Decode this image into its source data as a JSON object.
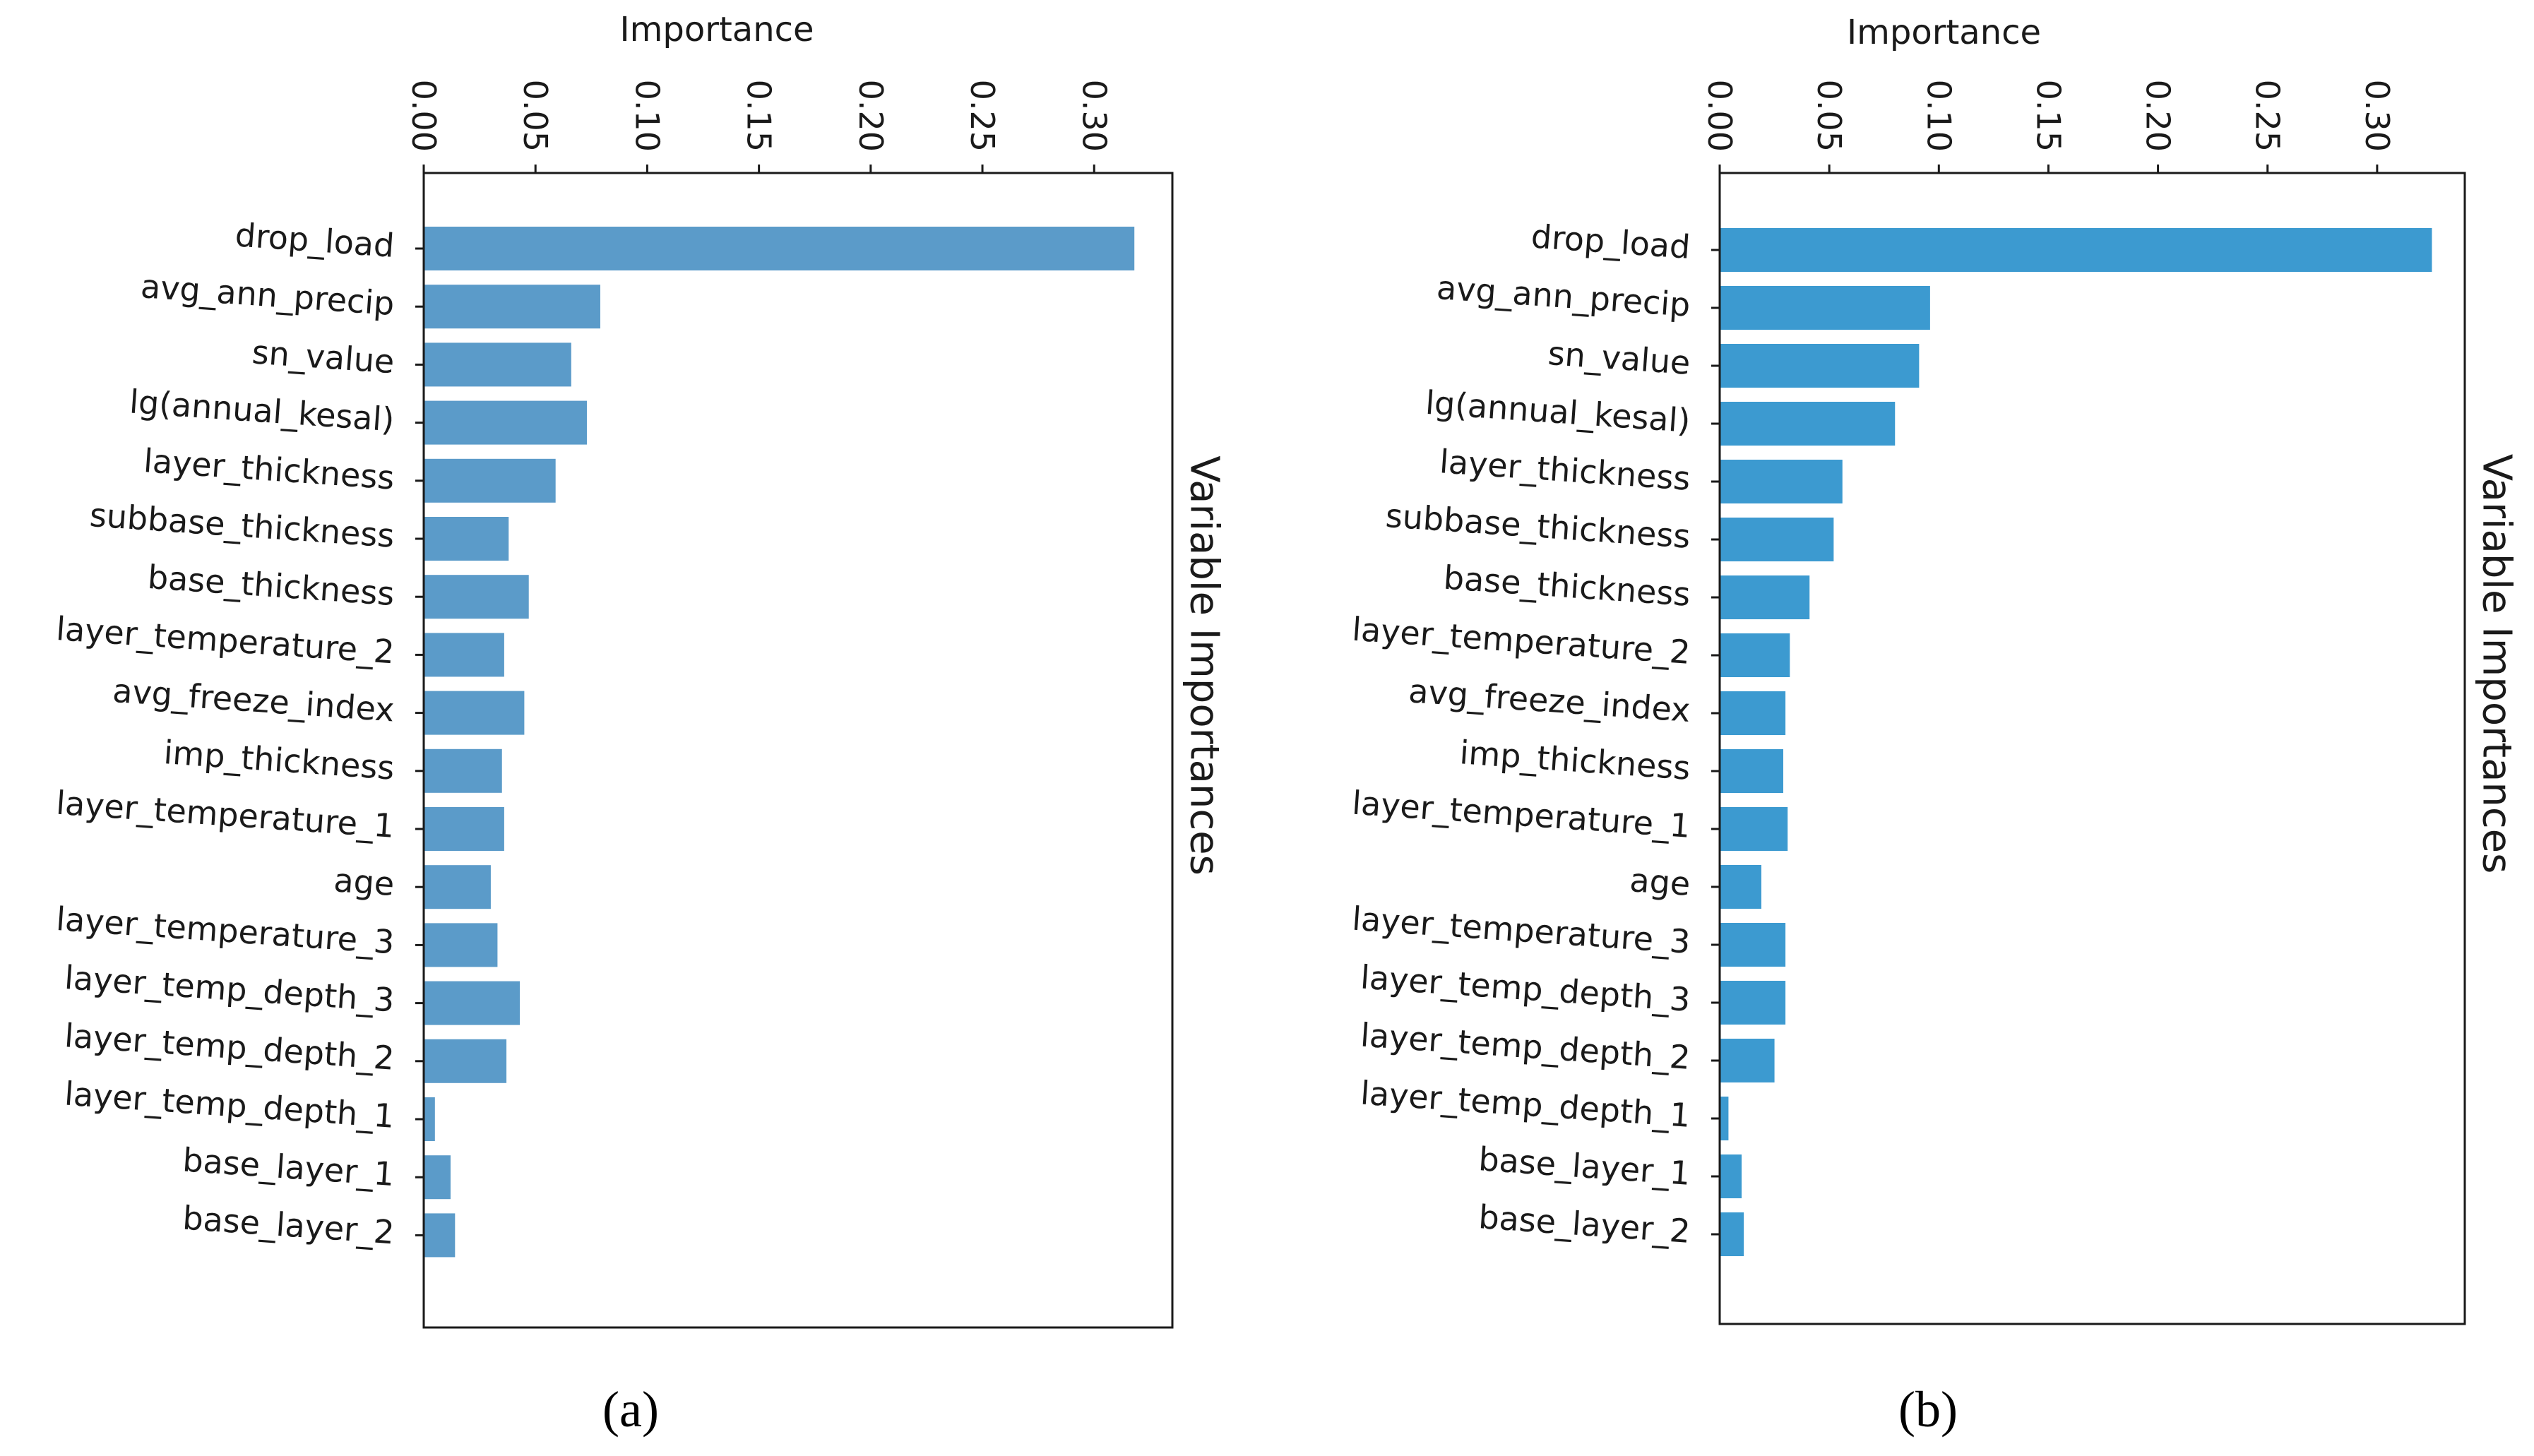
{
  "panels": [
    {
      "caption": "(a)",
      "bar_color": "#5b9bc9",
      "chart_data": {
        "type": "bar",
        "orientation": "horizontal",
        "xlabel": "Importance",
        "ylabel": "Variable Importances",
        "xlim": [
          0,
          0.335
        ],
        "ticks": [
          "0.00",
          "0.05",
          "0.10",
          "0.15",
          "0.20",
          "0.25",
          "0.30"
        ],
        "categories": [
          "drop_load",
          "avg_ann_precip",
          "sn_value",
          "lg(annual_kesal)",
          "layer_thickness",
          "subbase_thickness",
          "base_thickness",
          "layer_temperature_2",
          "avg_freeze_index",
          "imp_thickness",
          "layer_temperature_1",
          "age",
          "layer_temperature_3",
          "layer_temp_depth_3",
          "layer_temp_depth_2",
          "layer_temp_depth_1",
          "base_layer_1",
          "base_layer_2"
        ],
        "values": [
          0.318,
          0.079,
          0.066,
          0.073,
          0.059,
          0.038,
          0.047,
          0.036,
          0.045,
          0.035,
          0.036,
          0.03,
          0.033,
          0.043,
          0.037,
          0.005,
          0.012,
          0.014
        ]
      }
    },
    {
      "caption": "(b)",
      "bar_color": "#3c9ad0",
      "chart_data": {
        "type": "bar",
        "orientation": "horizontal",
        "xlabel": "Importance",
        "ylabel": "Variable Importances",
        "xlim": [
          0,
          0.34
        ],
        "ticks": [
          "0.00",
          "0.05",
          "0.10",
          "0.15",
          "0.20",
          "0.25",
          "0.30"
        ],
        "categories": [
          "drop_load",
          "avg_ann_precip",
          "sn_value",
          "lg(annual_kesal)",
          "layer_thickness",
          "subbase_thickness",
          "base_thickness",
          "layer_temperature_2",
          "avg_freeze_index",
          "imp_thickness",
          "layer_temperature_1",
          "age",
          "layer_temperature_3",
          "layer_temp_depth_3",
          "layer_temp_depth_2",
          "layer_temp_depth_1",
          "base_layer_1",
          "base_layer_2"
        ],
        "values": [
          0.325,
          0.096,
          0.091,
          0.08,
          0.056,
          0.052,
          0.041,
          0.032,
          0.03,
          0.029,
          0.031,
          0.019,
          0.03,
          0.03,
          0.025,
          0.004,
          0.01,
          0.011
        ]
      }
    }
  ]
}
